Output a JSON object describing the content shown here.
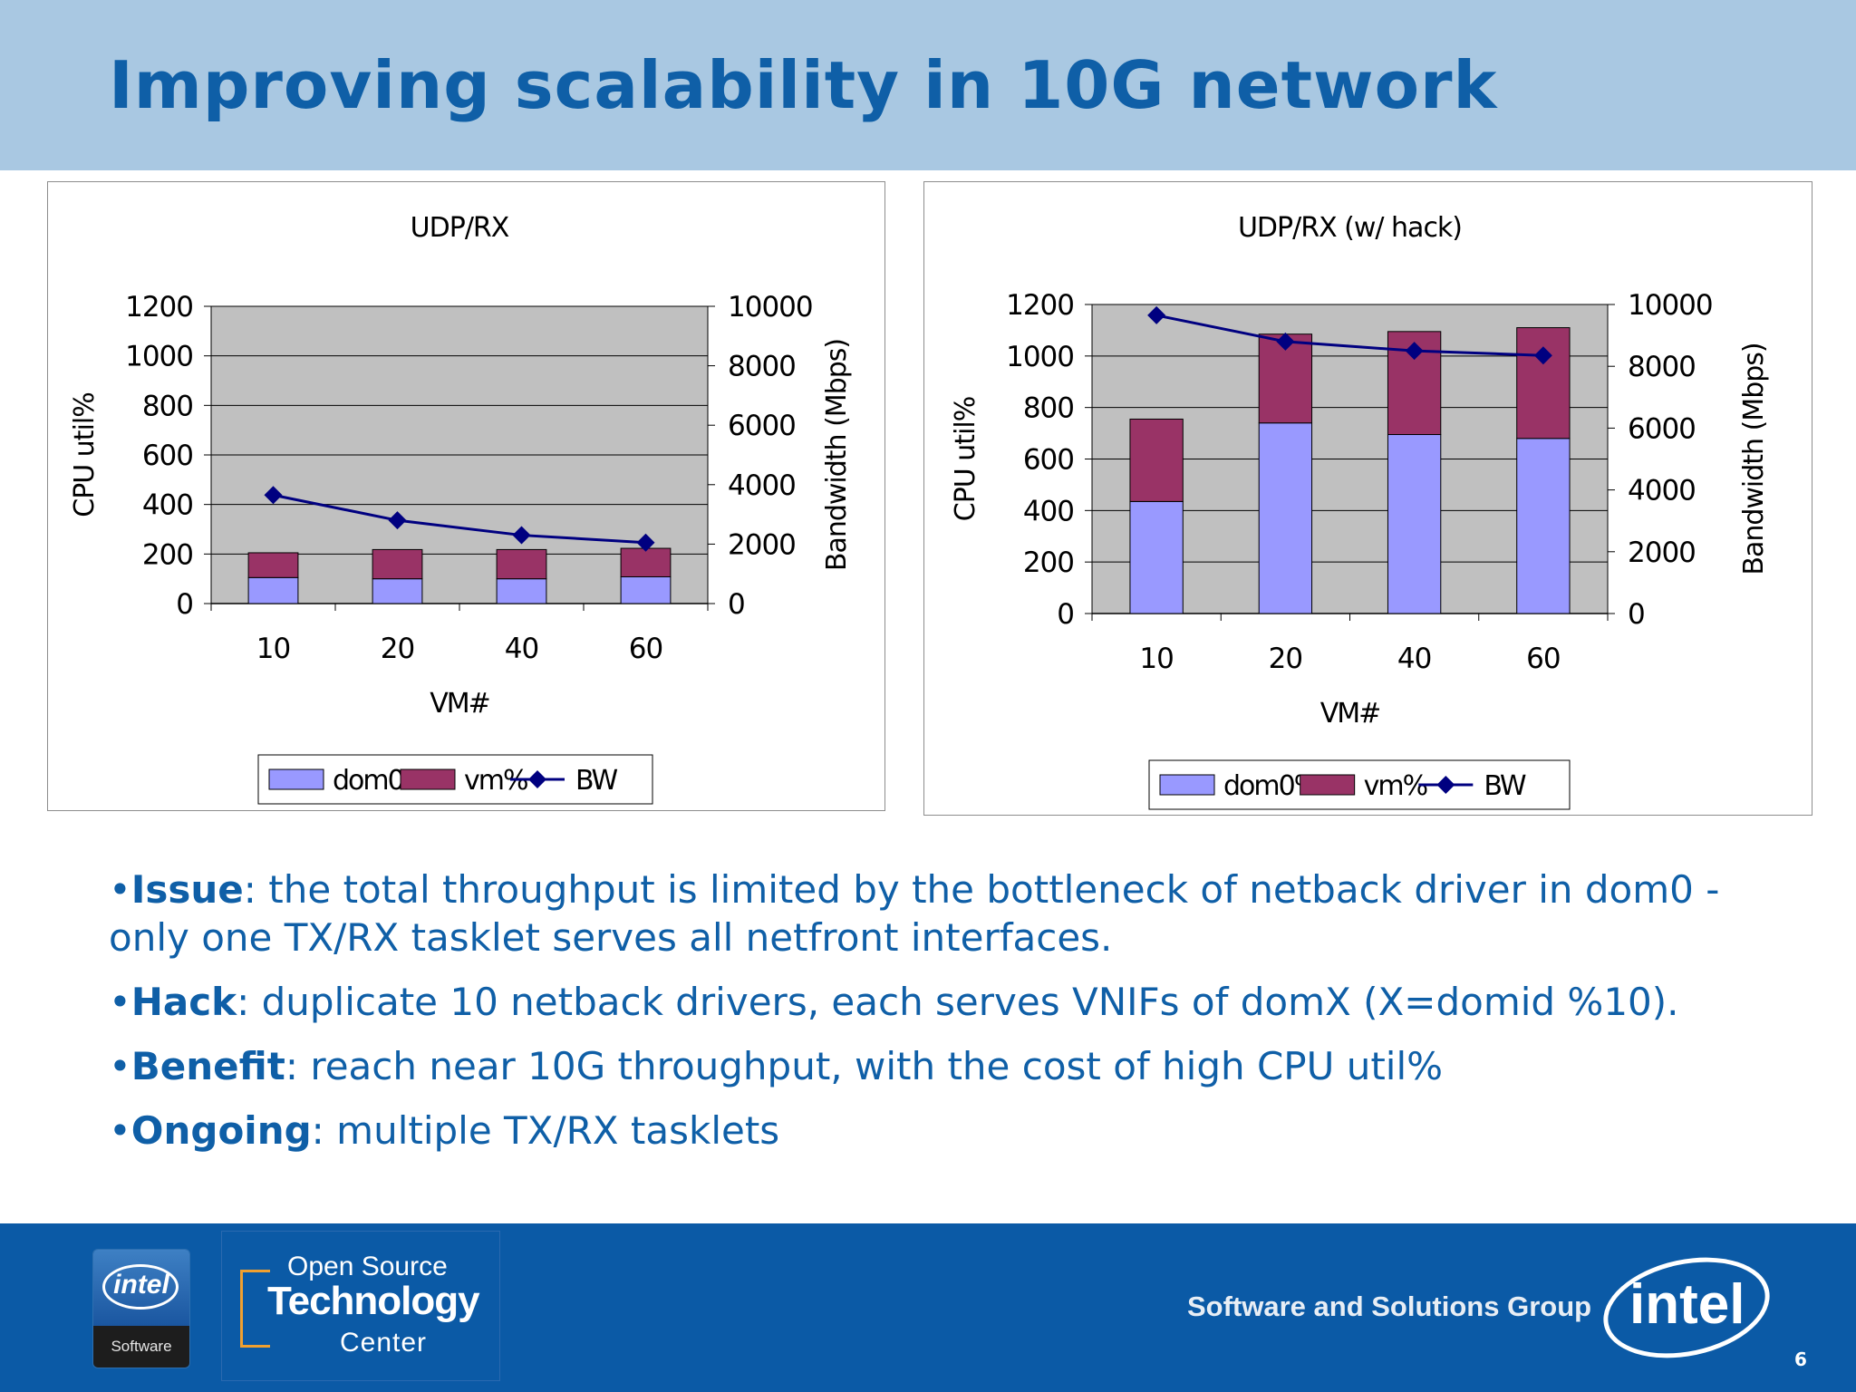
{
  "slide": {
    "title": "Improving scalability in 10G network",
    "page_number": "6"
  },
  "bullets": [
    {
      "term": "Issue",
      "text": ": the total throughput is limited by the bottleneck of netback driver in dom0 - only one TX/RX tasklet serves all netfront interfaces."
    },
    {
      "term": "Hack",
      "text": ": duplicate 10 netback drivers, each serves VNIFs of domX (X=domid %10)."
    },
    {
      "term": "Benefit",
      "text": ": reach near 10G throughput, with the cost of high CPU util%"
    },
    {
      "term": "Ongoing",
      "text": ": multiple TX/RX tasklets"
    }
  ],
  "footer": {
    "intel_badge_word": "intel",
    "intel_badge_label": "Software",
    "ostc_line1": "Open Source",
    "ostc_line2": "Technology",
    "ostc_line3": "Center",
    "group_name": "Software and Solutions Group",
    "intel_logo_word": "intel"
  },
  "colors": {
    "header_bg": "#a9c8e2",
    "title": "#0f5fa7",
    "footer_bg": "#0b5aa6",
    "plot_bg": "#c0c0c0",
    "dom0": "#9999ff",
    "vm": "#993366",
    "bw": "#000080"
  },
  "chart_data": [
    {
      "type": "bar",
      "stacked": true,
      "title": "UDP/RX",
      "xlabel": "VM#",
      "ylabel": "CPU util%",
      "y2label": "Bandwidth (Mbps)",
      "categories": [
        "10",
        "20",
        "40",
        "60"
      ],
      "ylim": [
        0,
        1200
      ],
      "y_ticks": [
        0,
        200,
        400,
        600,
        800,
        1000,
        1200
      ],
      "y2lim": [
        0,
        10000
      ],
      "y2_ticks": [
        0,
        2000,
        4000,
        6000,
        8000,
        10000
      ],
      "series": [
        {
          "name": "dom0%",
          "kind": "bar",
          "values": [
            105,
            100,
            100,
            108
          ]
        },
        {
          "name": "vm%",
          "kind": "bar",
          "values": [
            100,
            118,
            118,
            115
          ]
        },
        {
          "name": "BW",
          "kind": "line",
          "axis": "y2",
          "values": [
            3650,
            2800,
            2300,
            2050
          ]
        }
      ],
      "legend": [
        "dom0%",
        "vm%",
        "BW"
      ],
      "legend_position": "bottom",
      "grid": true
    },
    {
      "type": "bar",
      "stacked": true,
      "title": "UDP/RX (w/ hack)",
      "xlabel": "VM#",
      "ylabel": "CPU util%",
      "y2label": "Bandwidth (Mbps)",
      "categories": [
        "10",
        "20",
        "40",
        "60"
      ],
      "ylim": [
        0,
        1200
      ],
      "y_ticks": [
        0,
        200,
        400,
        600,
        800,
        1000,
        1200
      ],
      "y2lim": [
        0,
        10000
      ],
      "y2_ticks": [
        0,
        2000,
        4000,
        6000,
        8000,
        10000
      ],
      "series": [
        {
          "name": "dom0%",
          "kind": "bar",
          "values": [
            435,
            740,
            695,
            680
          ]
        },
        {
          "name": "vm%",
          "kind": "bar",
          "values": [
            320,
            345,
            400,
            430
          ]
        },
        {
          "name": "BW",
          "kind": "line",
          "axis": "y2",
          "values": [
            9650,
            8800,
            8500,
            8350
          ]
        }
      ],
      "legend": [
        "dom0%",
        "vm%",
        "BW"
      ],
      "legend_position": "bottom",
      "grid": true
    }
  ]
}
